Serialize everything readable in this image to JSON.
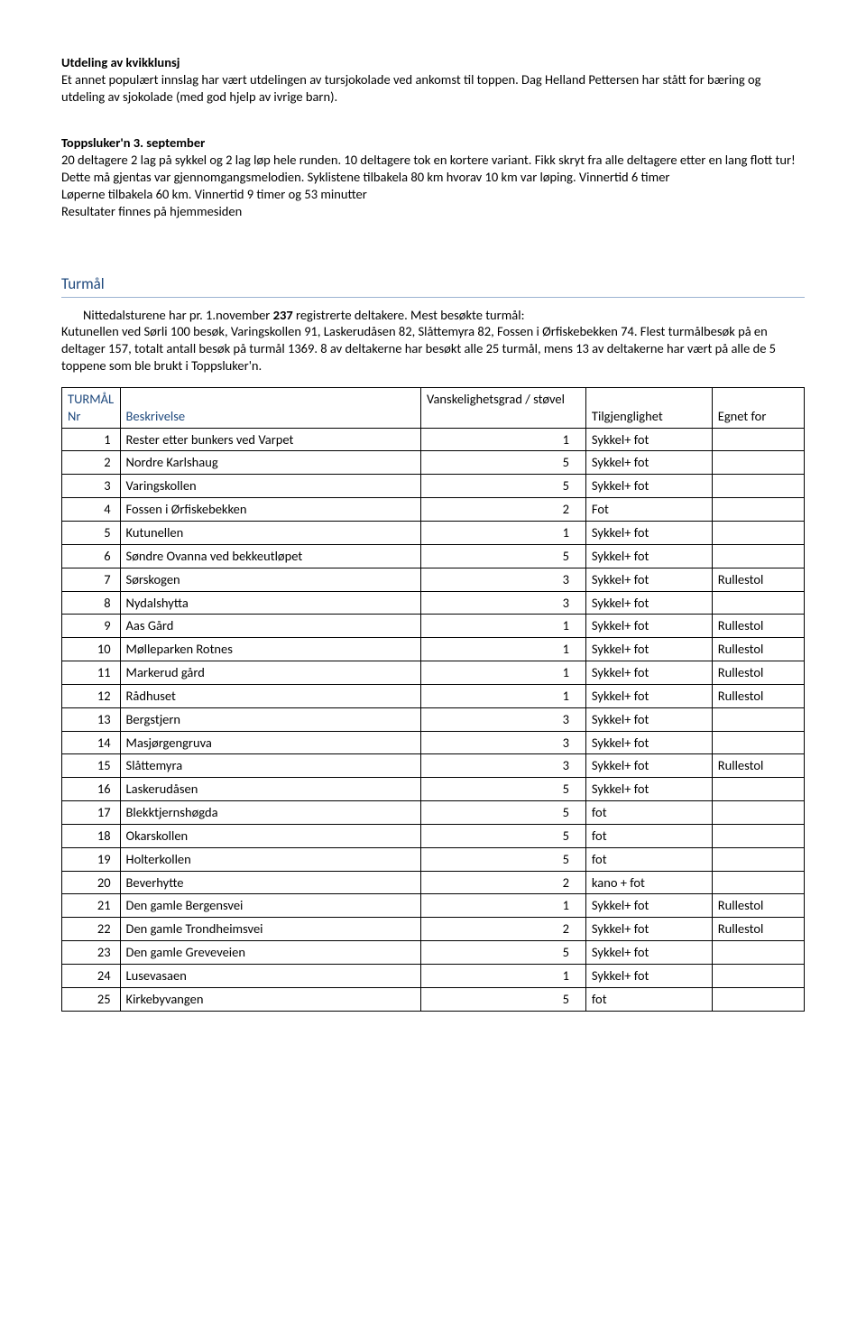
{
  "sec1": {
    "title": "Utdeling av kvikklunsj",
    "body": "Et annet populært innslag har vært utdelingen av tursjokolade ved ankomst til toppen. Dag Helland Pettersen har stått for bæring og utdeling av sjokolade (med god hjelp av ivrige barn)."
  },
  "sec2": {
    "title": "Toppsluker'n 3. september",
    "body": "20 deltagere 2 lag på sykkel og 2 lag løp hele runden. 10 deltagere tok en kortere variant. Fikk skryt fra alle deltagere etter en lang flott tur! Dette må gjentas var gjennomgangsmelodien. Syklistene tilbakela 80 km hvorav 10 km var løping. Vinnertid 6 timer\nLøperne tilbakela 60 km. Vinnertid 9 timer og 53 minutter\nResultater finnes på hjemmesiden"
  },
  "turmal": {
    "heading": "Turmål",
    "intro_prefix": "Nittedalsturene har pr. 1.november ",
    "intro_count": "237",
    "intro_suffix": " registrerte deltakere. Mest besøkte turmål:",
    "intro_rest": "Kutunellen ved Sørli 100 besøk, Varingskollen 91, Laskerudåsen 82, Slåttemyra 82, Fossen i Ørfiskebekken 74. Flest turmålbesøk på en deltager 157, totalt antall besøk på turmål 1369. 8 av deltakerne har besøkt alle 25 turmål, mens 13 av deltakerne har vært på alle de 5 toppene som ble brukt i Toppsluker'n."
  },
  "table": {
    "headers": {
      "section": "TURMÅL",
      "nr": "Nr",
      "desc": "Beskrivelse",
      "grade": "Vanskelighetsgrad / støvel",
      "acc": "Tilgjenglighet",
      "fit": "Egnet for"
    },
    "rows": [
      {
        "nr": "1",
        "desc": "Rester etter bunkers ved Varpet",
        "grade": "1",
        "acc": "Sykkel+ fot",
        "fit": ""
      },
      {
        "nr": "2",
        "desc": "Nordre Karlshaug",
        "grade": "5",
        "acc": "Sykkel+ fot",
        "fit": ""
      },
      {
        "nr": "3",
        "desc": "Varingskollen",
        "grade": "5",
        "acc": "Sykkel+ fot",
        "fit": ""
      },
      {
        "nr": "4",
        "desc": "Fossen i Ørfiskebekken",
        "grade": "2",
        "acc": "Fot",
        "fit": ""
      },
      {
        "nr": "5",
        "desc": "Kutunellen",
        "grade": "1",
        "acc": "Sykkel+ fot",
        "fit": ""
      },
      {
        "nr": "6",
        "desc": "Søndre Ovanna ved bekkeutløpet",
        "grade": "5",
        "acc": "Sykkel+ fot",
        "fit": ""
      },
      {
        "nr": "7",
        "desc": "Sørskogen",
        "grade": "3",
        "acc": "Sykkel+ fot",
        "fit": "Rullestol"
      },
      {
        "nr": "8",
        "desc": "Nydalshytta",
        "grade": "3",
        "acc": "Sykkel+ fot",
        "fit": ""
      },
      {
        "nr": "9",
        "desc": "Aas Gård",
        "grade": "1",
        "acc": "Sykkel+ fot",
        "fit": "Rullestol"
      },
      {
        "nr": "10",
        "desc": "Mølleparken Rotnes",
        "grade": "1",
        "acc": "Sykkel+ fot",
        "fit": "Rullestol"
      },
      {
        "nr": "11",
        "desc": "Markerud gård",
        "grade": "1",
        "acc": "Sykkel+ fot",
        "fit": "Rullestol"
      },
      {
        "nr": "12",
        "desc": "Rådhuset",
        "grade": "1",
        "acc": "Sykkel+ fot",
        "fit": "Rullestol"
      },
      {
        "nr": "13",
        "desc": "Bergstjern",
        "grade": "3",
        "acc": "Sykkel+ fot",
        "fit": ""
      },
      {
        "nr": "14",
        "desc": "Masjørgengruva",
        "grade": "3",
        "acc": "Sykkel+ fot",
        "fit": ""
      },
      {
        "nr": "15",
        "desc": "Slåttemyra",
        "grade": "3",
        "acc": "Sykkel+ fot",
        "fit": "Rullestol"
      },
      {
        "nr": "16",
        "desc": "Laskerudåsen",
        "grade": "5",
        "acc": "Sykkel+ fot",
        "fit": ""
      },
      {
        "nr": "17",
        "desc": "Blekktjernshøgda",
        "grade": "5",
        "acc": "fot",
        "fit": ""
      },
      {
        "nr": "18",
        "desc": "Okarskollen",
        "grade": "5",
        "acc": "fot",
        "fit": ""
      },
      {
        "nr": "19",
        "desc": "Holterkollen",
        "grade": "5",
        "acc": "fot",
        "fit": ""
      },
      {
        "nr": "20",
        "desc": "Beverhytte",
        "grade": "2",
        "acc": "kano + fot",
        "fit": ""
      },
      {
        "nr": "21",
        "desc": "Den gamle Bergensvei",
        "grade": "1",
        "acc": "Sykkel+ fot",
        "fit": "Rullestol"
      },
      {
        "nr": "22",
        "desc": "Den gamle Trondheimsvei",
        "grade": "2",
        "acc": "Sykkel+ fot",
        "fit": "Rullestol"
      },
      {
        "nr": "23",
        "desc": "Den gamle Greveveien",
        "grade": "5",
        "acc": "Sykkel+ fot",
        "fit": ""
      },
      {
        "nr": "24",
        "desc": "Lusevasaen",
        "grade": "1",
        "acc": "Sykkel+ fot",
        "fit": ""
      },
      {
        "nr": "25",
        "desc": "Kirkebyvangen",
        "grade": "5",
        "acc": "fot",
        "fit": ""
      }
    ]
  }
}
